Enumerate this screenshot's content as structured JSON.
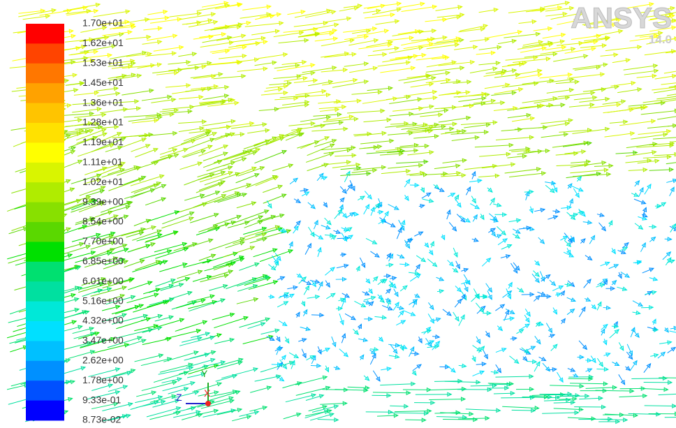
{
  "colorbar": {
    "labels": [
      "1.70e+01",
      "1.62e+01",
      "1.53e+01",
      "1.45e+01",
      "1.36e+01",
      "1.28e+01",
      "1.19e+01",
      "1.11e+01",
      "1.02e+01",
      "9.39e+00",
      "8.54e+00",
      "7.70e+00",
      "6.85e+00",
      "6.01e+00",
      "5.16e+00",
      "4.32e+00",
      "3.47e+00",
      "2.62e+00",
      "1.78e+00",
      "9.33e-01",
      "8.73e-02"
    ],
    "colors": [
      "#ff0000",
      "#ff4400",
      "#ff7700",
      "#ffa200",
      "#ffc400",
      "#ffe100",
      "#ffff00",
      "#d9f500",
      "#b0ec00",
      "#88e000",
      "#5ad800",
      "#00e000",
      "#00e070",
      "#00e0a0",
      "#00e8d8",
      "#00e0ff",
      "#00c0ff",
      "#0090ff",
      "#0050ff",
      "#0000ff"
    ]
  },
  "logo": {
    "brand": "ANSYS",
    "version": "14.0"
  },
  "triad": {
    "y": "Y",
    "z": "Z",
    "x": "X"
  }
}
